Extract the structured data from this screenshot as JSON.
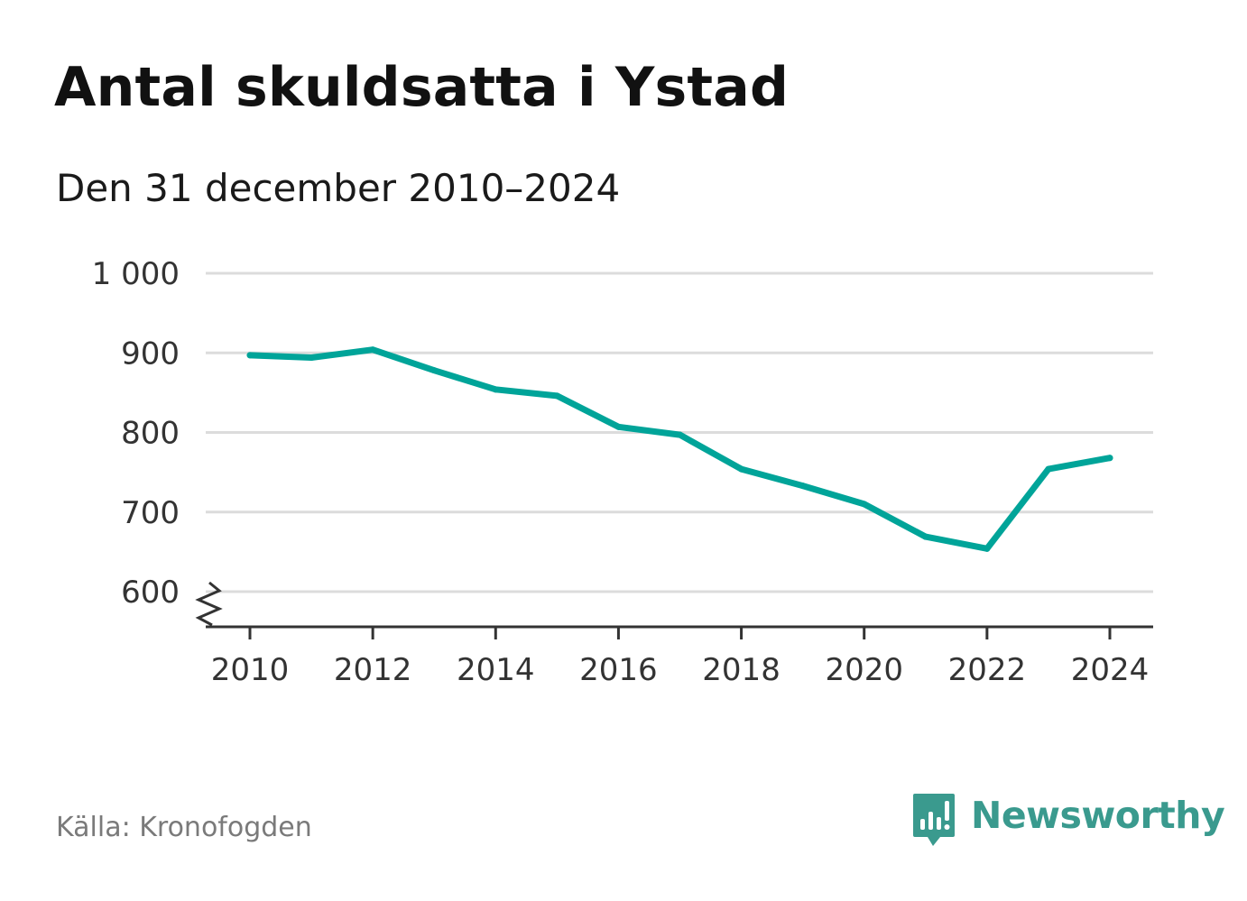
{
  "header": {
    "title": "Antal skuldsatta i Ystad",
    "subtitle": "Den 31 december 2010–2024"
  },
  "footer": {
    "source": "Källa: Kronofogden",
    "brand": "Newsworthy",
    "brand_icon": "bar-chart-speech-bubble-icon",
    "brand_color": "#3a9a8e"
  },
  "chart_data": {
    "type": "line",
    "x": [
      2010,
      2011,
      2012,
      2013,
      2014,
      2015,
      2016,
      2017,
      2018,
      2019,
      2020,
      2021,
      2022,
      2023,
      2024
    ],
    "series": [
      {
        "values": [
          897,
          894,
          904,
          878,
          854,
          846,
          807,
          797,
          754,
          733,
          710,
          669,
          654,
          754,
          768
        ],
        "color": "#00a499"
      }
    ],
    "x_ticks": [
      "2010",
      "2012",
      "2014",
      "2016",
      "2018",
      "2020",
      "2022",
      "2024"
    ],
    "y_ticks": [
      {
        "value": 600,
        "label": "600"
      },
      {
        "value": 700,
        "label": "700"
      },
      {
        "value": 800,
        "label": "800"
      },
      {
        "value": 900,
        "label": "900"
      },
      {
        "value": 1000,
        "label": "1 000"
      }
    ],
    "xlim": [
      2010,
      2024
    ],
    "ylim": [
      600,
      1000
    ],
    "y_axis_break": true,
    "grid": "horizontal",
    "legend": "none",
    "xlabel": "",
    "ylabel": ""
  }
}
